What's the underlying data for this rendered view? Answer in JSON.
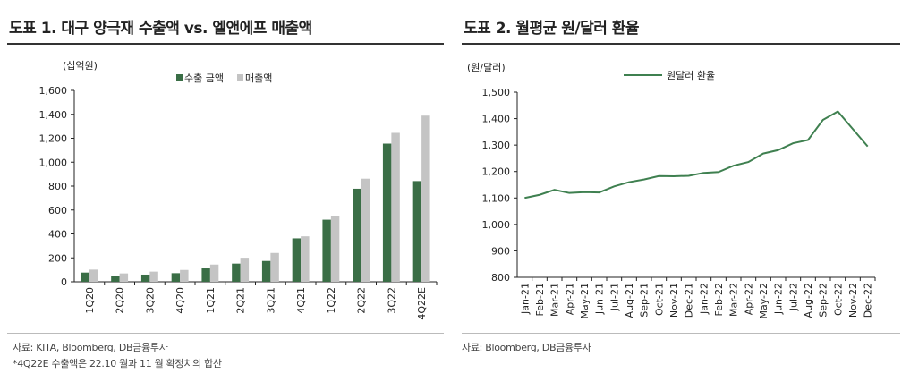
{
  "titles": {
    "left": "도표 1. 대구 양극재 수출액 vs. 엘앤에프 매출액",
    "right": "도표 2. 월평균 원/달러 환율"
  },
  "notes": {
    "left_source": "자료: KITA, Bloomberg, DB금융투자",
    "left_footnote": "*4Q22E 수출액은 22.10 월과 11 월 확정치의 합산",
    "right_source": "자료: Bloomberg, DB금융투자"
  },
  "chart_data": [
    {
      "type": "bar",
      "unit_label": "(십억원)",
      "ylim": [
        0,
        1600
      ],
      "yticks": [
        0,
        200,
        400,
        600,
        800,
        1000,
        1200,
        1400,
        1600
      ],
      "grid": false,
      "legend": "top",
      "categories": [
        "1Q20",
        "2Q20",
        "3Q20",
        "4Q20",
        "1Q21",
        "2Q21",
        "3Q21",
        "4Q21",
        "1Q22",
        "2Q22",
        "3Q22",
        "4Q22E"
      ],
      "series": [
        {
          "name": "수출 금액",
          "color": "#3a6e46",
          "values": [
            77,
            52,
            60,
            72,
            112,
            152,
            174,
            363,
            519,
            778,
            1155,
            842
          ]
        },
        {
          "name": "매출액",
          "color": "#c4c4c4",
          "values": [
            102,
            70,
            85,
            99,
            144,
            201,
            241,
            380,
            552,
            862,
            1245,
            1389
          ]
        }
      ]
    },
    {
      "type": "line",
      "unit_label": "(원/달러)",
      "ylim": [
        800,
        1500
      ],
      "yticks": [
        800,
        900,
        1000,
        1100,
        1200,
        1300,
        1400,
        1500
      ],
      "grid": false,
      "legend": "top",
      "categories": [
        "Jan-21",
        "Feb-21",
        "Mar-21",
        "Apr-21",
        "May-21",
        "Jun-21",
        "Jul-21",
        "Aug-21",
        "Sep-21",
        "Oct-21",
        "Nov-21",
        "Dec-21",
        "Jan-22",
        "Feb-22",
        "Mar-22",
        "Apr-22",
        "May-22",
        "Jun-22",
        "Jul-22",
        "Aug-22",
        "Sep-22",
        "Oct-22",
        "Nov-22",
        "Dec-22"
      ],
      "series": [
        {
          "name": "원달러 환율",
          "color": "#3f8050",
          "values": [
            1100,
            1112,
            1131,
            1119,
            1122,
            1121,
            1144,
            1160,
            1170,
            1183,
            1182,
            1184,
            1195,
            1198,
            1222,
            1236,
            1268,
            1281,
            1307,
            1319,
            1395,
            1427,
            1361,
            1295
          ]
        }
      ]
    }
  ]
}
